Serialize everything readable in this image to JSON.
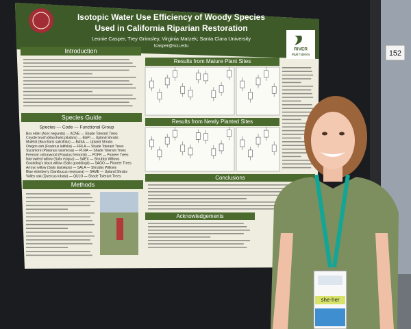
{
  "poster": {
    "title_line1": "Isotopic Water Use Efficiency of Woody Species",
    "title_line2": "Used in California Riparian Restoration",
    "authors": "Leonie Casper, Trey Grimsley, Virginia Matzek; Santa Clara University",
    "email": "lcasper@scu.edu",
    "logo_lines": [
      "RIVER",
      "PARTNERS"
    ],
    "sections": {
      "introduction": "Introduction",
      "species_guide": "Species Guide",
      "methods": "Methods",
      "results_mature": "Results from Mature Plant Sites",
      "results_new": "Results from Newly Planted Sites",
      "conclusions": "Conclusions",
      "acknowledgements": "Acknowledgements"
    },
    "species_header": "Species — Code — Functional Group",
    "species": [
      "Box elder (Acer negundo) — ACNE — Shade Tolerant Trees",
      "Coyote brush (Baccharis pilularis) — BAPI — Upland Shrubs",
      "Mulefat (Baccharis salicifolia) — BASA — Upland Shrubs",
      "Oregon ash (Fraxinus latifolia) — FRLA — Shade Tolerant Trees",
      "Sycamore (Platanus racemosa) — PLRA — Shade Tolerant Trees",
      "Fremont cottonwood (Populus fremontii) — POFR — Pioneer Trees",
      "Narrowleaf willow (Salix exigua) — SAEX — Shrubby Willows",
      "Goodding's black willow (Salix gooddingii) — SAGO — Pioneer Trees",
      "Arroyo willow (Salix lasiolepis) — SALA — Shrubby Willows",
      "Blue elderberry (Sambucus mexicana) — SAME — Upland Shrubs",
      "Valley oak (Quercus lobata) — QULO — Shade Tolerant Trees"
    ]
  },
  "board_number": "152",
  "badge": {
    "pronouns": "she·her"
  }
}
